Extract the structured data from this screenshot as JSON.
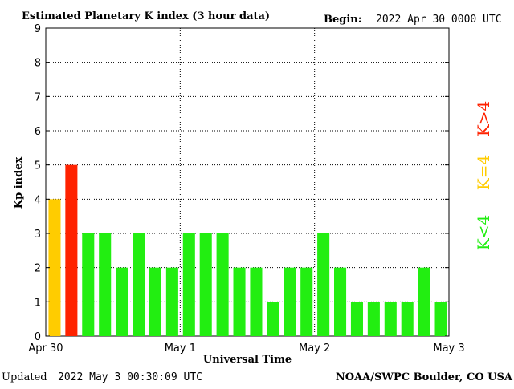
{
  "header": {
    "title": "Estimated Planetary K index (3 hour data)",
    "begin_label": "Begin:",
    "begin_value": "2022 Apr 30 0000 UTC"
  },
  "footer": {
    "updated_label": "Updated",
    "updated_value": "2022 May  3 00:30:09 UTC",
    "source": "NOAA/SWPC Boulder, CO USA"
  },
  "legend": {
    "low": "K<4",
    "mid": "K=4",
    "high": "K>4"
  },
  "colors": {
    "low": "#22ee11",
    "mid": "#ffcc00",
    "high": "#ff2200",
    "grid": "#000000",
    "axis": "#000000"
  },
  "chart_data": {
    "type": "bar",
    "title": "Estimated Planetary K index (3 hour data)",
    "xlabel": "Universal Time",
    "ylabel": "Kp index",
    "ylim": [
      0,
      9
    ],
    "yticks": [
      "0",
      "1",
      "2",
      "3",
      "4",
      "5",
      "6",
      "7",
      "8",
      "9"
    ],
    "xticks": [
      "Apr 30",
      "May 1",
      "May 2",
      "May 3"
    ],
    "grid": true,
    "values": [
      4,
      5,
      3,
      3,
      2,
      3,
      2,
      2,
      3,
      3,
      3,
      2,
      2,
      1,
      2,
      2,
      3,
      2,
      1,
      1,
      1,
      1,
      2,
      1
    ]
  }
}
